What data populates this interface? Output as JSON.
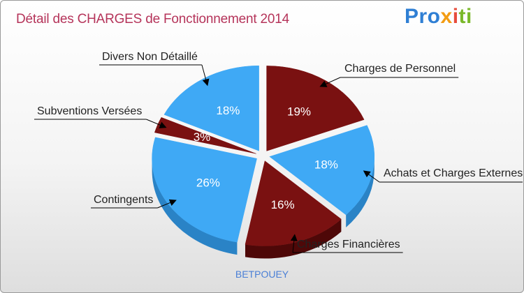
{
  "header": {
    "title": "Détail des CHARGES de Fonctionnement 2014",
    "logo": [
      "Pro",
      "x",
      "i",
      "ti"
    ]
  },
  "footer": {
    "commune": "BETPOUEY"
  },
  "colors": {
    "light": "#3fa9f5",
    "dark": "#7a1111"
  },
  "chart_data": {
    "type": "pie",
    "title": "Détail des CHARGES de Fonctionnement 2014",
    "slices": [
      {
        "label": "Charges de Personnel",
        "value": 19,
        "display": "19%",
        "color": "dark"
      },
      {
        "label": "Achats et Charges Externes",
        "value": 18,
        "display": "18%",
        "color": "light"
      },
      {
        "label": "Charges Financières",
        "value": 16,
        "display": "16%",
        "color": "dark"
      },
      {
        "label": "Contingents",
        "value": 26,
        "display": "26%",
        "color": "light"
      },
      {
        "label": "Subventions Versées",
        "value": 3,
        "display": "3%",
        "color": "dark"
      },
      {
        "label": "Divers Non Détaillé",
        "value": 18,
        "display": "18%",
        "color": "light"
      }
    ]
  }
}
